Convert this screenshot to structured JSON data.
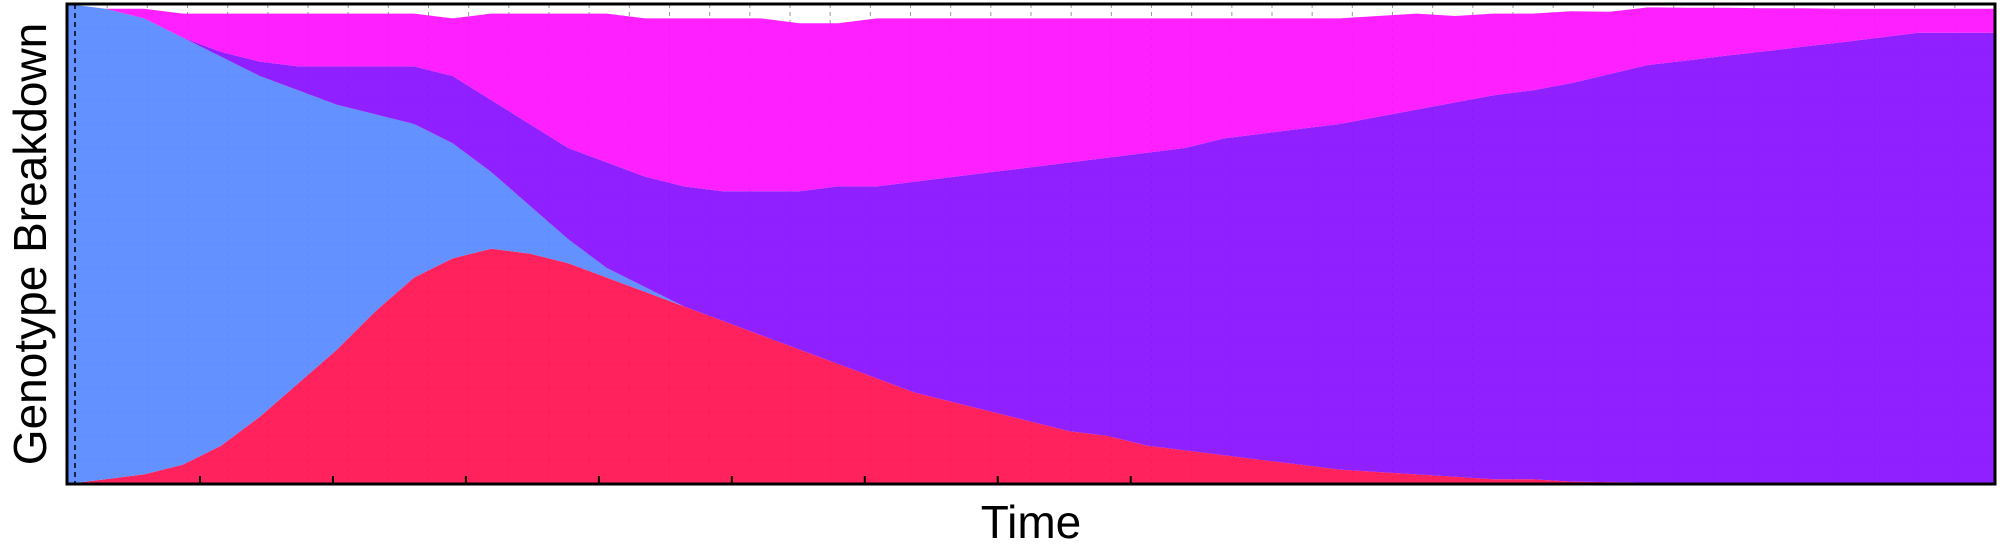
{
  "chart_data": {
    "type": "area",
    "stacked": true,
    "xlabel": "Time",
    "ylabel": "Genotype Breakdown",
    "ylim": [
      0,
      1
    ],
    "x": [
      0,
      2,
      4,
      6,
      8,
      10,
      12,
      14,
      16,
      18,
      20,
      22,
      24,
      26,
      28,
      30,
      32,
      34,
      36,
      38,
      40,
      42,
      44,
      46,
      48,
      50,
      52,
      54,
      56,
      58,
      60,
      62,
      64,
      66,
      68,
      70,
      72,
      74,
      76,
      78,
      80,
      82,
      84,
      86,
      88,
      90,
      92,
      94,
      96,
      98,
      100
    ],
    "grid": true,
    "series": [
      {
        "color": "#ff1654",
        "values": [
          0.0,
          0.01,
          0.02,
          0.04,
          0.08,
          0.14,
          0.21,
          0.28,
          0.36,
          0.43,
          0.47,
          0.49,
          0.48,
          0.46,
          0.43,
          0.4,
          0.37,
          0.34,
          0.31,
          0.28,
          0.25,
          0.22,
          0.19,
          0.17,
          0.15,
          0.13,
          0.11,
          0.1,
          0.08,
          0.07,
          0.06,
          0.05,
          0.04,
          0.03,
          0.025,
          0.02,
          0.015,
          0.01,
          0.01,
          0.005,
          0.004,
          0.003,
          0.002,
          0.002,
          0.001,
          0.001,
          0.0,
          0.0,
          0.0,
          0.0,
          0.0
        ]
      },
      {
        "color": "#5b8bff",
        "values": [
          1.0,
          0.98,
          0.95,
          0.89,
          0.81,
          0.71,
          0.61,
          0.51,
          0.41,
          0.32,
          0.24,
          0.16,
          0.1,
          0.05,
          0.02,
          0.01,
          0.0,
          0.0,
          0.0,
          0.0,
          0.0,
          0.0,
          0.0,
          0.0,
          0.0,
          0.0,
          0.0,
          0.0,
          0.0,
          0.0,
          0.0,
          0.0,
          0.0,
          0.0,
          0.0,
          0.0,
          0.0,
          0.0,
          0.0,
          0.0,
          0.0,
          0.0,
          0.0,
          0.0,
          0.0,
          0.0,
          0.0,
          0.0,
          0.0,
          0.0,
          0.0
        ]
      },
      {
        "color": "#8a14ff",
        "values": [
          0.0,
          0.0,
          0.0,
          0.0,
          0.01,
          0.03,
          0.05,
          0.08,
          0.1,
          0.12,
          0.14,
          0.15,
          0.17,
          0.19,
          0.22,
          0.23,
          0.25,
          0.27,
          0.3,
          0.33,
          0.37,
          0.4,
          0.44,
          0.47,
          0.5,
          0.53,
          0.56,
          0.58,
          0.61,
          0.63,
          0.66,
          0.68,
          0.7,
          0.72,
          0.74,
          0.76,
          0.78,
          0.8,
          0.81,
          0.83,
          0.85,
          0.87,
          0.88,
          0.89,
          0.9,
          0.91,
          0.92,
          0.93,
          0.94,
          0.94,
          0.94
        ]
      },
      {
        "color": "#ff14ff",
        "values": [
          0.0,
          0.0,
          0.02,
          0.05,
          0.08,
          0.1,
          0.11,
          0.11,
          0.11,
          0.11,
          0.12,
          0.18,
          0.23,
          0.28,
          0.31,
          0.33,
          0.35,
          0.36,
          0.36,
          0.35,
          0.34,
          0.35,
          0.34,
          0.33,
          0.32,
          0.31,
          0.3,
          0.29,
          0.28,
          0.27,
          0.25,
          0.24,
          0.23,
          0.22,
          0.21,
          0.2,
          0.18,
          0.17,
          0.16,
          0.15,
          0.13,
          0.12,
          0.11,
          0.1,
          0.09,
          0.08,
          0.07,
          0.06,
          0.05,
          0.05,
          0.05
        ]
      }
    ]
  }
}
